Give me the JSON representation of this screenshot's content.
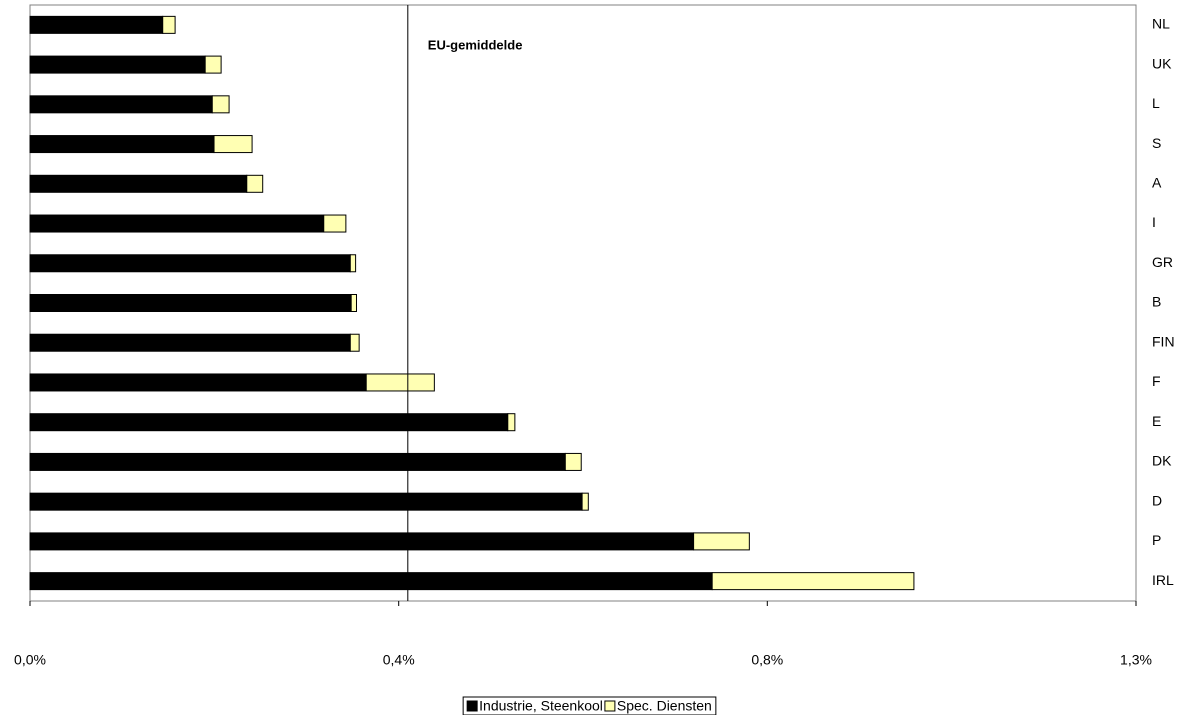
{
  "chart_data": {
    "type": "stacked_barh",
    "categories": [
      "NL",
      "UK",
      "L",
      "S",
      "A",
      "I",
      "GR",
      "B",
      "FIN",
      "F",
      "E",
      "DK",
      "D",
      "P",
      "IRL"
    ],
    "series": [
      {
        "name": "Industrie, Steenkool",
        "color": "#000000",
        "values": [
          0.15,
          0.198,
          0.206,
          0.208,
          0.245,
          0.332,
          0.362,
          0.363,
          0.362,
          0.38,
          0.54,
          0.605,
          0.624,
          0.75,
          0.771
        ]
      },
      {
        "name": "Spec. Diensten",
        "color": "#ffffb3",
        "values": [
          0.014,
          0.018,
          0.019,
          0.043,
          0.018,
          0.025,
          0.006,
          0.006,
          0.01,
          0.077,
          0.008,
          0.018,
          0.007,
          0.063,
          0.228
        ]
      }
    ],
    "xlim": [
      0,
      1.25
    ],
    "xticks": [
      {
        "value": 0,
        "label": "0,0%"
      },
      {
        "value": 0.4167,
        "label": "0,4%"
      },
      {
        "value": 0.8333,
        "label": "0,8%"
      },
      {
        "value": 1.25,
        "label": "1,3%"
      }
    ],
    "reference_line": {
      "value": 0.427,
      "label": "EU-gemiddelde"
    },
    "legend": "bottom"
  }
}
